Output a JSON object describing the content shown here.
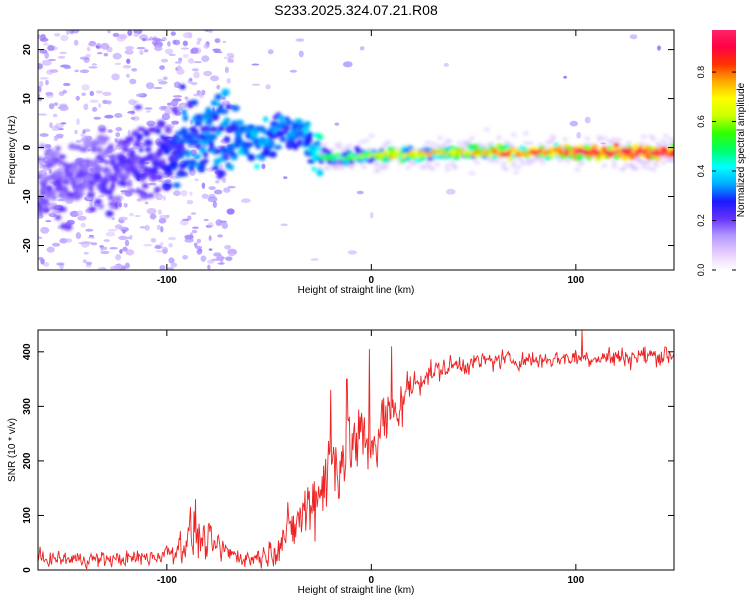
{
  "title": "S233.2025.324.07.21.R08",
  "chart_data": [
    {
      "type": "heatmap",
      "title": "S233.2025.324.07.21.R08",
      "xlabel": "Height of straight line (km)",
      "ylabel": "Frequency (Hz)",
      "xlim": [
        -163,
        148
      ],
      "ylim": [
        -25,
        24
      ],
      "xticks": [
        -100,
        0,
        100
      ],
      "yticks": [
        -20,
        -10,
        0,
        10,
        20
      ],
      "colorbar": {
        "label": "Normalized spectral amplitude",
        "range": [
          0.0,
          0.97
        ],
        "ticks": [
          0.0,
          0.2,
          0.4,
          0.6,
          0.8
        ],
        "colors": [
          "#ffffff",
          "#e6ccff",
          "#b399ff",
          "#6633ff",
          "#1a1aff",
          "#00aaff",
          "#00ffff",
          "#00ff66",
          "#33ff00",
          "#ccff00",
          "#ffff00",
          "#ffaa00",
          "#ff3300",
          "#ff0044",
          "#ff2266"
        ]
      },
      "ridge": [
        {
          "x": -163,
          "f": -7,
          "amp": 0.18
        },
        {
          "x": -140,
          "f": -6,
          "amp": 0.18
        },
        {
          "x": -120,
          "f": -4,
          "amp": 0.2
        },
        {
          "x": -100,
          "f": -1,
          "amp": 0.24
        },
        {
          "x": -85,
          "f": 3,
          "amp": 0.3
        },
        {
          "x": -70,
          "f": 2,
          "amp": 0.3
        },
        {
          "x": -55,
          "f": 1,
          "amp": 0.35
        },
        {
          "x": -45,
          "f": 4,
          "amp": 0.3
        },
        {
          "x": -35,
          "f": 3,
          "amp": 0.3
        },
        {
          "x": -25,
          "f": -2,
          "amp": 0.4
        },
        {
          "x": -10,
          "f": -2,
          "amp": 0.5
        },
        {
          "x": 10,
          "f": -1.5,
          "amp": 0.6
        },
        {
          "x": 40,
          "f": -1,
          "amp": 0.65
        },
        {
          "x": 80,
          "f": -1,
          "amp": 0.75
        },
        {
          "x": 110,
          "f": -1,
          "amp": 0.85
        },
        {
          "x": 148,
          "f": -1,
          "amp": 0.9
        }
      ]
    },
    {
      "type": "line",
      "xlabel": "Height of straight line (km)",
      "ylabel": "SNR (10 * v/v)",
      "xlim": [
        -163,
        148
      ],
      "ylim": [
        0,
        440
      ],
      "xticks": [
        -100,
        0,
        100
      ],
      "yticks": [
        0,
        100,
        200,
        300,
        400
      ],
      "series": [
        {
          "name": "SNR",
          "color": "#ee2222",
          "envelope": {
            "x": [
              -163,
              -140,
              -120,
              -105,
              -95,
              -88,
              -80,
              -72,
              -60,
              -50,
              -40,
              -30,
              -20,
              -10,
              0,
              10,
              18,
              25,
              40,
              60,
              80,
              100,
              120,
              148
            ],
            "mean": [
              20,
              20,
              20,
              25,
              40,
              65,
              50,
              35,
              20,
              30,
              70,
              120,
              190,
              230,
              240,
              280,
              330,
              355,
              375,
              385,
              385,
              390,
              390,
              395
            ],
            "spread": [
              15,
              15,
              15,
              18,
              30,
              45,
              35,
              25,
              15,
              25,
              45,
              70,
              90,
              80,
              80,
              60,
              40,
              25,
              20,
              18,
              18,
              18,
              20,
              20
            ]
          },
          "peaks": [
            {
              "x": -86,
              "y": 130
            },
            {
              "x": -20,
              "y": 330
            },
            {
              "x": -12,
              "y": 350
            },
            {
              "x": -1,
              "y": 405
            },
            {
              "x": 10,
              "y": 410
            },
            {
              "x": 103,
              "y": 440
            }
          ]
        }
      ]
    }
  ]
}
